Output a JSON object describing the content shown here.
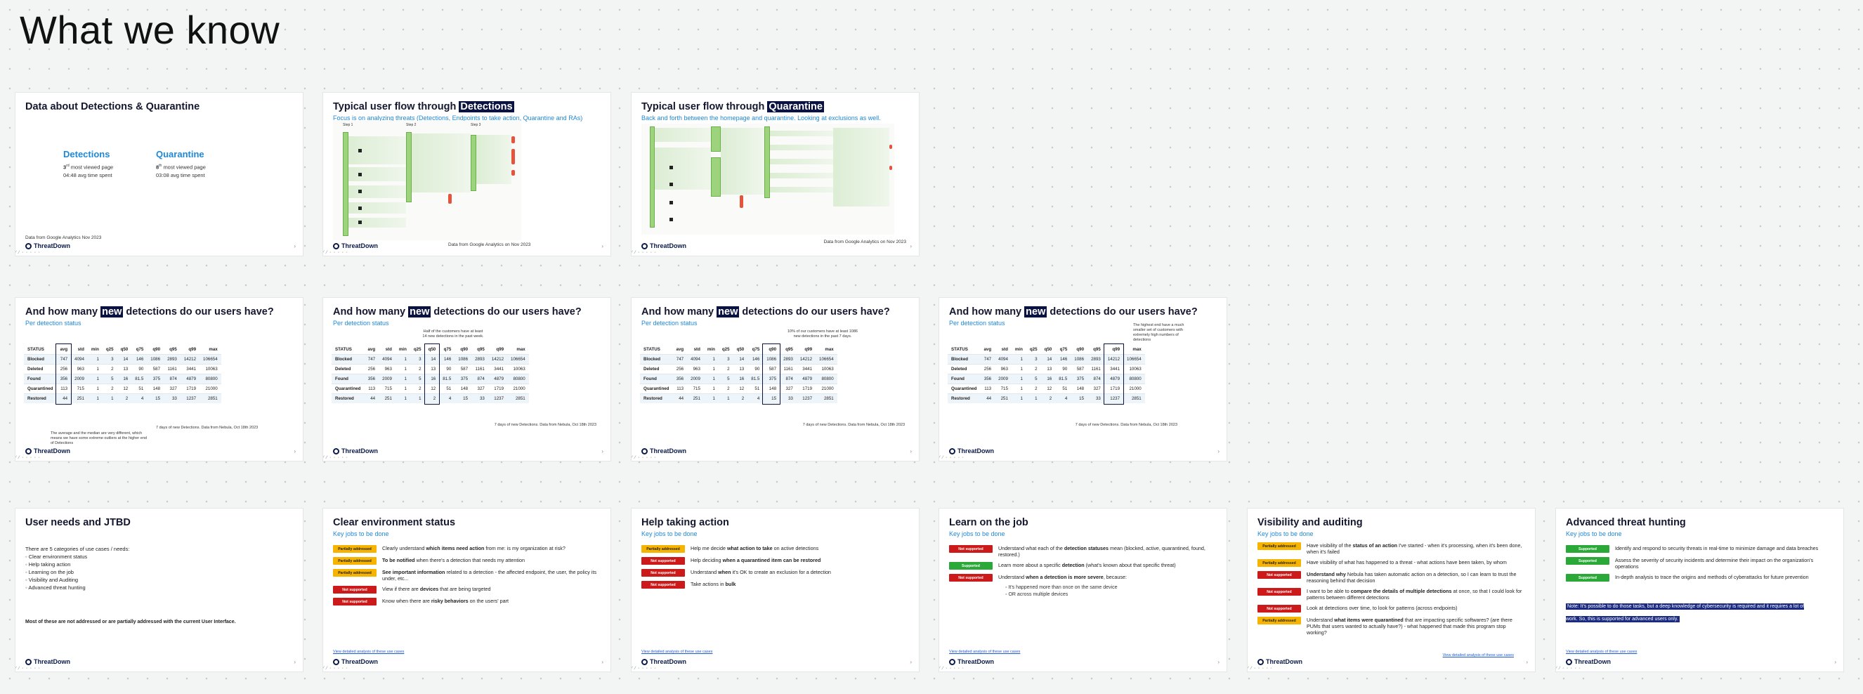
{
  "board": {
    "title": "What we know"
  },
  "common": {
    "logo": "ThreatDown",
    "ga_source": "Data from Google Analytics on Nov 2023",
    "ga_source_short": "Data from Google Analytics Nov 2023",
    "detections_source": "7 days of new Detections. Data from Nebula, Oct 18th 2023",
    "per_status": "Per detection status",
    "jobs_label": "Key jobs to be done",
    "slide_dots": "⁄ ⁄ ◦ ◦ ◦ ◦ ◦",
    "next_arrow": "›"
  },
  "slide1": {
    "title": "Data about Detections & Quarantine",
    "detections": {
      "name": "Detections",
      "rank_num": "3",
      "rank_sup": "rd",
      "rank_text": "most viewed page",
      "time": "04:48 avg time spent"
    },
    "quarantine": {
      "name": "Quarantine",
      "rank_num": "8",
      "rank_sup": "th",
      "rank_text": "most viewed page",
      "time": "03:08 avg time spent"
    }
  },
  "slide2": {
    "title_pre": "Typical user flow through ",
    "title_hl": "Detections",
    "subtitle": "Focus is on analyzing threats (Detections, Endpoints to take action, Quarantine and RAs)",
    "cap1": "Step 1",
    "cap2": "Step 2",
    "cap3": "Step 3"
  },
  "slide3": {
    "title_pre": "Typical user flow through ",
    "title_hl": "Quarantine",
    "subtitle": "Back and forth between the homepage and quarantine. Looking at exclusions as well."
  },
  "table": {
    "title_pre": "And how many ",
    "title_hl": "new",
    "title_post": " detections do our users have?",
    "headers": [
      "STATUS",
      "avg",
      "std",
      "min",
      "q25",
      "q50",
      "q75",
      "q90",
      "q95",
      "q99",
      "max"
    ],
    "rows": [
      [
        "Blocked",
        "747",
        "4094",
        "1",
        "3",
        "14",
        "146",
        "1086",
        "2893",
        "14212",
        "106654"
      ],
      [
        "Deleted",
        "256",
        "963",
        "1",
        "2",
        "13",
        "90",
        "587",
        "1161",
        "3441",
        "10063"
      ],
      [
        "Found",
        "356",
        "2009",
        "1",
        "5",
        "16",
        "81.5",
        "375",
        "874",
        "4879",
        "80800"
      ],
      [
        "Quarantined",
        "113",
        "715",
        "1",
        "2",
        "12",
        "51",
        "148",
        "327",
        "1719",
        "21000"
      ],
      [
        "Restored",
        "44",
        "251",
        "1",
        "1",
        "2",
        "4",
        "15",
        "33",
        "1237",
        "2851"
      ]
    ],
    "note_avg": "The average and the median are very different, which means we have some extreme outliers at the higher end of Detections",
    "note_median": "Half of the customers have at least 14 new detections in the past week.",
    "note_q90": "10% of our customers have at least 1086 new detections in the past 7 days.",
    "note_q99": "The highest end have a much smaller set of customers with extremely high numbers of detections"
  },
  "jtbd": {
    "title": "User needs and JTBD",
    "intro": "There are 5 categories of use cases / needs:",
    "items": [
      "Clear environment status",
      "Help taking action",
      "Learning on the job",
      "Visibility and Auditing",
      "Advanced threat hunting"
    ],
    "summary": "Most of these are not addressed or are partially addressed with the current User Interface."
  },
  "badges": {
    "partial": "Partially addressed",
    "not": "Not supported",
    "sup": "Supported"
  },
  "clear_env": {
    "title": "Clear environment status",
    "jobs": [
      {
        "status": "partial",
        "pre": "Clearly understand ",
        "bold": "which items need action",
        "post": " from me: is my organization at risk?"
      },
      {
        "status": "partial",
        "pre": "",
        "bold": "To be notified",
        "post": " when there's a detection that needs my attention"
      },
      {
        "status": "partial",
        "pre": "",
        "bold": "See important information",
        "post": " related to a detection - the affected endpoint, the user, the policy its under, etc..."
      },
      {
        "status": "not",
        "pre": "View if there are ",
        "bold": "devices",
        "post": " that are being targeted"
      },
      {
        "status": "not",
        "pre": "Know when there are ",
        "bold": "risky behaviors",
        "post": " on the users' part"
      }
    ],
    "link": "View detailed analysis of these use cases"
  },
  "help_action": {
    "title": "Help taking action",
    "jobs": [
      {
        "status": "partial",
        "pre": "Help me decide ",
        "bold": "what action to take",
        "post": " on active detections"
      },
      {
        "status": "not",
        "pre": "Help deciding ",
        "bold": "when a quarantined item can be restored",
        "post": ""
      },
      {
        "status": "not",
        "pre": "Understand ",
        "bold": "when",
        "post": " it's OK to create an exclusion for a detection"
      },
      {
        "status": "not",
        "pre": "Take actions in ",
        "bold": "bulk",
        "post": ""
      }
    ],
    "link": "View detailed analysis of these use cases"
  },
  "learn": {
    "title": "Learn on the job",
    "jobs": [
      {
        "status": "not",
        "pre": "Understand what each of the ",
        "bold": "detection statuses",
        "post": " mean (blocked, active, quarantined, found, restored.)"
      },
      {
        "status": "sup",
        "pre": "Learn more about a specific ",
        "bold": "detection",
        "post": " (what's known about that specific threat)"
      },
      {
        "status": "not",
        "pre": "Understand ",
        "bold": "when a detection is more severe",
        "post": ", because:"
      }
    ],
    "bullets": [
      "It's happened more than once on the same device",
      "OR across multiple devices"
    ],
    "link": "View detailed analysis of these use cases"
  },
  "visibility": {
    "title": "Visibility and auditing",
    "jobs": [
      {
        "status": "partial",
        "pre": "Have visibility of the ",
        "bold": "status of an action",
        "post": " I've started - when it's processing, when it's been done, when it's failed"
      },
      {
        "status": "partial",
        "pre": "Have visibility of what has happened to a threat - what actions have been taken, by whom",
        "bold": "",
        "post": ""
      },
      {
        "status": "not",
        "pre": "",
        "bold": "Understand why",
        "post": " Nebula has taken automatic action on a detection, so I can learn to trust the reasoning behind that decision"
      },
      {
        "status": "not",
        "pre": "I want to be able to ",
        "bold": "compare the details of multiple detections",
        "post": " at once, so that I could look for patterns between different detections"
      },
      {
        "status": "not",
        "pre": "Look at detections over time, to look for patterns (across endpoints)",
        "bold": "",
        "post": ""
      },
      {
        "status": "partial",
        "pre": "Understand ",
        "bold": "what items were quarantined",
        "post": " that are impacting specific softwares? (are there PUMs that users wanted to actually have?) - what happened that made this program stop working?"
      }
    ],
    "link": "View detailed analysis of these use cases"
  },
  "hunting": {
    "title": "Advanced threat hunting",
    "jobs": [
      {
        "status": "sup",
        "pre": "Identify and respond to security threats in real-time to minimize damage and data breaches",
        "bold": "",
        "post": ""
      },
      {
        "status": "sup",
        "pre": "Assess the severity of security incidents and determine their impact on the organization's operations",
        "bold": "",
        "post": ""
      },
      {
        "status": "sup",
        "pre": "In-depth analysis to trace the origins and methods of cyberattacks for future prevention",
        "bold": "",
        "post": ""
      }
    ],
    "note": "Note: It's possible to do those tasks, but a deep knowledge of cybersecurity is required and it requires a lot of work. So, this is supported for advanced users only.",
    "link": "View detailed analysis of these use cases"
  }
}
